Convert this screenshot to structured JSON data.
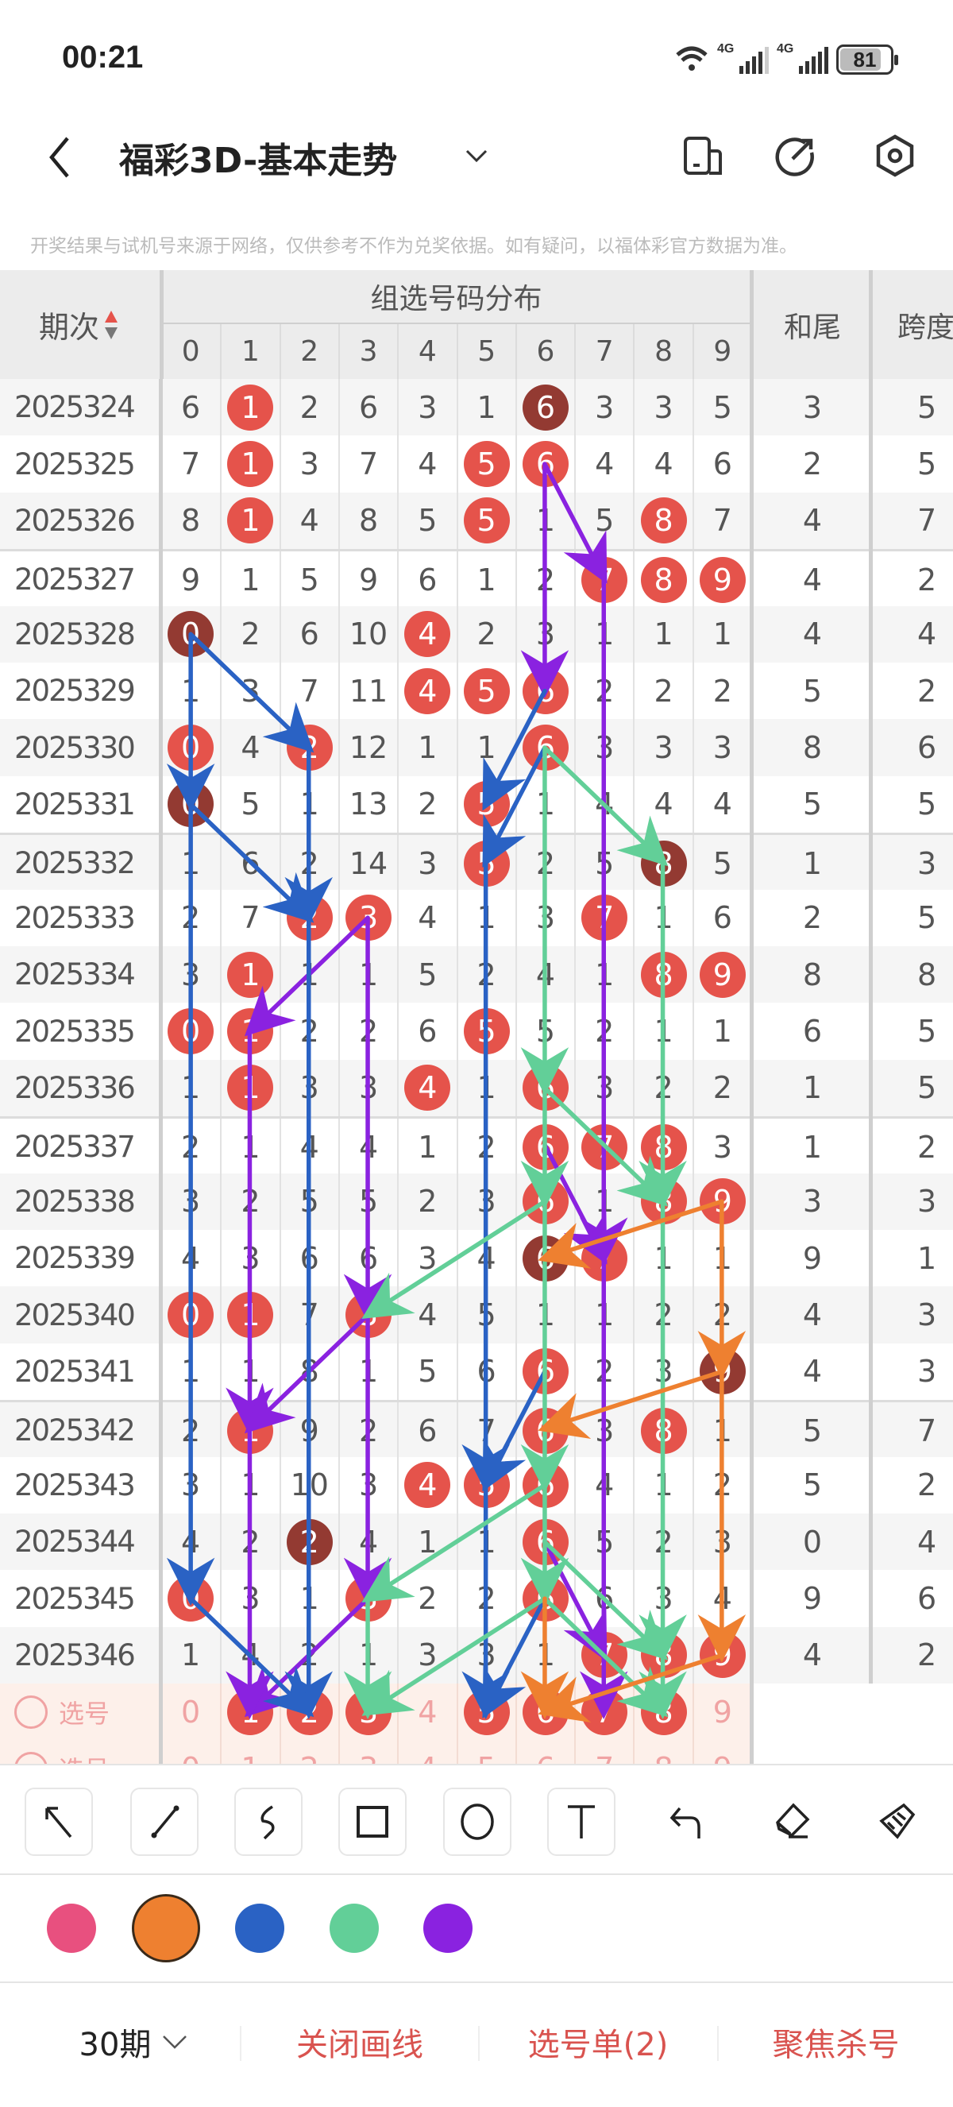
{
  "status_bar": {
    "time": "00:21",
    "network1": "4G",
    "network2": "4G",
    "battery": "81"
  },
  "header": {
    "title": "福彩3D-基本走势",
    "icons": [
      "back-icon",
      "chevron-down-icon",
      "phone-layout-icon",
      "share-icon",
      "settings-icon"
    ]
  },
  "disclaimer": "开奖结果与试机号来源于网络，仅供参考不作为兑奖依据。如有疑问，以福体彩官方数据为准。",
  "table": {
    "col_issue": "期次",
    "col_group": "组选号码分布",
    "digits": [
      "0",
      "1",
      "2",
      "3",
      "4",
      "5",
      "6",
      "7",
      "8",
      "9"
    ],
    "col_sum_tail": "和尾",
    "col_span": "跨度",
    "rows": [
      {
        "issue": "2025324",
        "values": [
          6,
          1,
          2,
          6,
          3,
          1,
          6,
          3,
          3,
          5
        ],
        "hits": [
          1
        ],
        "repeat": 6,
        "sum_tail": "3",
        "span": "5"
      },
      {
        "issue": "2025325",
        "values": [
          7,
          1,
          3,
          7,
          4,
          5,
          6,
          4,
          4,
          6
        ],
        "hits": [
          1,
          5,
          6
        ],
        "repeat": null,
        "sum_tail": "2",
        "span": "5"
      },
      {
        "issue": "2025326",
        "values": [
          8,
          1,
          4,
          8,
          5,
          5,
          1,
          5,
          8,
          7
        ],
        "hits": [
          1,
          5,
          8
        ],
        "repeat": null,
        "sum_tail": "4",
        "span": "7"
      },
      {
        "issue": "2025327",
        "values": [
          9,
          1,
          5,
          9,
          6,
          1,
          2,
          7,
          8,
          9
        ],
        "hits": [
          7,
          8,
          9
        ],
        "repeat": null,
        "sum_tail": "4",
        "span": "2"
      },
      {
        "issue": "2025328",
        "values": [
          0,
          2,
          6,
          10,
          4,
          2,
          3,
          1,
          1,
          1
        ],
        "hits": [
          4
        ],
        "repeat": 0,
        "sum_tail": "4",
        "span": "4"
      },
      {
        "issue": "2025329",
        "values": [
          1,
          3,
          7,
          11,
          4,
          5,
          6,
          2,
          2,
          2
        ],
        "hits": [
          4,
          5,
          6
        ],
        "repeat": null,
        "sum_tail": "5",
        "span": "2"
      },
      {
        "issue": "2025330",
        "values": [
          0,
          4,
          2,
          12,
          1,
          1,
          6,
          3,
          3,
          3
        ],
        "hits": [
          0,
          2,
          6
        ],
        "repeat": null,
        "sum_tail": "8",
        "span": "6"
      },
      {
        "issue": "2025331",
        "values": [
          0,
          5,
          1,
          13,
          2,
          5,
          1,
          4,
          4,
          4
        ],
        "hits": [
          5
        ],
        "repeat": 0,
        "sum_tail": "5",
        "span": "5"
      },
      {
        "issue": "2025332",
        "values": [
          1,
          6,
          2,
          14,
          3,
          5,
          2,
          5,
          8,
          5
        ],
        "hits": [
          5
        ],
        "repeat": 8,
        "sum_tail": "1",
        "span": "3"
      },
      {
        "issue": "2025333",
        "values": [
          2,
          7,
          2,
          3,
          4,
          1,
          3,
          7,
          1,
          6
        ],
        "hits": [
          2,
          3,
          7
        ],
        "repeat": null,
        "sum_tail": "2",
        "span": "5"
      },
      {
        "issue": "2025334",
        "values": [
          3,
          1,
          1,
          1,
          5,
          2,
          4,
          1,
          8,
          9
        ],
        "hits": [
          1,
          8,
          9
        ],
        "repeat": null,
        "sum_tail": "8",
        "span": "8"
      },
      {
        "issue": "2025335",
        "values": [
          0,
          1,
          2,
          2,
          6,
          5,
          5,
          2,
          1,
          1
        ],
        "hits": [
          0,
          1,
          5
        ],
        "repeat": null,
        "sum_tail": "6",
        "span": "5"
      },
      {
        "issue": "2025336",
        "values": [
          1,
          1,
          3,
          3,
          4,
          1,
          6,
          3,
          2,
          2
        ],
        "hits": [
          1,
          4,
          6
        ],
        "repeat": null,
        "sum_tail": "1",
        "span": "5"
      },
      {
        "issue": "2025337",
        "values": [
          2,
          1,
          4,
          4,
          1,
          2,
          6,
          7,
          8,
          3
        ],
        "hits": [
          6,
          7,
          8
        ],
        "repeat": null,
        "sum_tail": "1",
        "span": "2"
      },
      {
        "issue": "2025338",
        "values": [
          3,
          2,
          5,
          5,
          2,
          3,
          6,
          1,
          8,
          9
        ],
        "hits": [
          6,
          8,
          9
        ],
        "repeat": null,
        "sum_tail": "3",
        "span": "3"
      },
      {
        "issue": "2025339",
        "values": [
          4,
          3,
          6,
          6,
          3,
          4,
          6,
          7,
          1,
          1
        ],
        "hits": [
          7
        ],
        "repeat": 6,
        "sum_tail": "9",
        "span": "1"
      },
      {
        "issue": "2025340",
        "values": [
          0,
          1,
          7,
          3,
          4,
          5,
          1,
          1,
          2,
          2
        ],
        "hits": [
          0,
          1,
          3
        ],
        "repeat": null,
        "sum_tail": "4",
        "span": "3"
      },
      {
        "issue": "2025341",
        "values": [
          1,
          1,
          8,
          1,
          5,
          6,
          6,
          2,
          3,
          9
        ],
        "hits": [
          6
        ],
        "repeat": 9,
        "sum_tail": "4",
        "span": "3"
      },
      {
        "issue": "2025342",
        "values": [
          2,
          1,
          9,
          2,
          6,
          7,
          6,
          3,
          8,
          1
        ],
        "hits": [
          1,
          6,
          8
        ],
        "repeat": null,
        "sum_tail": "5",
        "span": "7"
      },
      {
        "issue": "2025343",
        "values": [
          3,
          1,
          10,
          3,
          4,
          5,
          6,
          4,
          1,
          2
        ],
        "hits": [
          4,
          5,
          6
        ],
        "repeat": null,
        "sum_tail": "5",
        "span": "2"
      },
      {
        "issue": "2025344",
        "values": [
          4,
          2,
          2,
          4,
          1,
          1,
          6,
          5,
          2,
          3
        ],
        "hits": [
          6
        ],
        "repeat": 2,
        "sum_tail": "0",
        "span": "4"
      },
      {
        "issue": "2025345",
        "values": [
          0,
          3,
          1,
          3,
          2,
          2,
          6,
          6,
          3,
          4
        ],
        "hits": [
          0,
          3,
          6
        ],
        "repeat": null,
        "sum_tail": "9",
        "span": "6"
      },
      {
        "issue": "2025346",
        "values": [
          1,
          4,
          2,
          1,
          3,
          3,
          1,
          7,
          8,
          9
        ],
        "hits": [
          7,
          8,
          9
        ],
        "repeat": null,
        "sum_tail": "4",
        "span": "2"
      }
    ],
    "selection_rows": [
      {
        "label": "选号",
        "selected": [
          1,
          2,
          3,
          5,
          6,
          7,
          8
        ]
      },
      {
        "label": "选号",
        "selected": []
      }
    ]
  },
  "colors": {
    "hit": "#e5534b",
    "repeat": "#933a32",
    "pink": "#e8507f",
    "orange": "#ee8030",
    "blue": "#2a62c4",
    "green": "#62cf98",
    "purple": "#8a22e0",
    "accent": "#d9534f"
  },
  "drawings": [
    {
      "color": "purple",
      "from": [
        "2025325",
        6
      ],
      "to": [
        "2025327",
        7
      ]
    },
    {
      "color": "purple",
      "from": [
        "2025325",
        6
      ],
      "to": [
        "2025329",
        6
      ]
    },
    {
      "color": "purple",
      "from": [
        "2025327",
        7
      ],
      "to": [
        "2025339",
        7
      ]
    },
    {
      "color": "purple",
      "from": [
        "2025333",
        3
      ],
      "to": [
        "2025335",
        1
      ]
    },
    {
      "color": "purple",
      "from": [
        "2025333",
        3
      ],
      "to": [
        "2025340",
        3
      ]
    },
    {
      "color": "purple",
      "from": [
        "2025335",
        1
      ],
      "to": [
        "2025342",
        1
      ]
    },
    {
      "color": "purple",
      "from": [
        "2025340",
        3
      ],
      "to": [
        "2025342",
        1
      ]
    },
    {
      "color": "purple",
      "from": [
        "2025337",
        6
      ],
      "to": [
        "2025339",
        7
      ]
    },
    {
      "color": "purple",
      "from": [
        "2025340",
        3
      ],
      "to": [
        "2025345",
        3
      ]
    },
    {
      "color": "purple",
      "from": [
        "2025345",
        3
      ],
      "to": [
        "选号",
        1
      ]
    },
    {
      "color": "purple",
      "from": [
        "2025342",
        1
      ],
      "to": [
        "选号",
        1
      ]
    },
    {
      "color": "purple",
      "from": [
        "2025344",
        6
      ],
      "to": [
        "2025346",
        7
      ]
    },
    {
      "color": "purple",
      "from": [
        "2025339",
        7
      ],
      "to": [
        "选号",
        7
      ]
    },
    {
      "color": "blue",
      "from": [
        "2025328",
        0
      ],
      "to": [
        "2025330",
        2
      ]
    },
    {
      "color": "blue",
      "from": [
        "2025328",
        0
      ],
      "to": [
        "2025331",
        0
      ]
    },
    {
      "color": "blue",
      "from": [
        "2025329",
        6
      ],
      "to": [
        "2025331",
        5
      ]
    },
    {
      "color": "blue",
      "from": [
        "2025330",
        6
      ],
      "to": [
        "2025332",
        5
      ]
    },
    {
      "color": "blue",
      "from": [
        "2025331",
        0
      ],
      "to": [
        "2025333",
        2
      ]
    },
    {
      "color": "blue",
      "from": [
        "2025330",
        2
      ],
      "to": [
        "2025333",
        2
      ]
    },
    {
      "color": "blue",
      "from": [
        "2025331",
        0
      ],
      "to": [
        "2025345",
        0
      ]
    },
    {
      "color": "blue",
      "from": [
        "2025333",
        2
      ],
      "to": [
        "选号",
        2
      ]
    },
    {
      "color": "blue",
      "from": [
        "2025332",
        5
      ],
      "to": [
        "2025343",
        5
      ]
    },
    {
      "color": "blue",
      "from": [
        "2025341",
        6
      ],
      "to": [
        "2025343",
        5
      ]
    },
    {
      "color": "blue",
      "from": [
        "2025343",
        5
      ],
      "to": [
        "选号",
        5
      ]
    },
    {
      "color": "blue",
      "from": [
        "2025345",
        0
      ],
      "to": [
        "选号",
        2
      ]
    },
    {
      "color": "blue",
      "from": [
        "2025345",
        6
      ],
      "to": [
        "选号",
        5
      ]
    },
    {
      "color": "green",
      "from": [
        "2025330",
        6
      ],
      "to": [
        "2025332",
        8
      ]
    },
    {
      "color": "green",
      "from": [
        "2025330",
        6
      ],
      "to": [
        "2025336",
        6
      ]
    },
    {
      "color": "green",
      "from": [
        "2025332",
        8
      ],
      "to": [
        "2025338",
        8
      ]
    },
    {
      "color": "green",
      "from": [
        "2025336",
        6
      ],
      "to": [
        "2025338",
        8
      ]
    },
    {
      "color": "green",
      "from": [
        "2025336",
        6
      ],
      "to": [
        "2025338",
        6
      ]
    },
    {
      "color": "green",
      "from": [
        "2025338",
        6
      ],
      "to": [
        "2025340",
        3
      ]
    },
    {
      "color": "green",
      "from": [
        "2025338",
        6
      ],
      "to": [
        "2025343",
        6
      ]
    },
    {
      "color": "green",
      "from": [
        "2025343",
        6
      ],
      "to": [
        "2025345",
        3
      ]
    },
    {
      "color": "green",
      "from": [
        "2025343",
        6
      ],
      "to": [
        "2025345",
        6
      ]
    },
    {
      "color": "green",
      "from": [
        "2025344",
        6
      ],
      "to": [
        "2025346",
        8
      ]
    },
    {
      "color": "green",
      "from": [
        "2025338",
        8
      ],
      "to": [
        "2025346",
        8
      ]
    },
    {
      "color": "green",
      "from": [
        "2025345",
        6
      ],
      "to": [
        "选号",
        3
      ]
    },
    {
      "color": "green",
      "from": [
        "2025345",
        3
      ],
      "to": [
        "选号",
        3
      ]
    },
    {
      "color": "green",
      "from": [
        "2025345",
        6
      ],
      "to": [
        "选号",
        8
      ]
    },
    {
      "color": "green",
      "from": [
        "2025346",
        8
      ],
      "to": [
        "选号",
        8
      ]
    },
    {
      "color": "orange",
      "from": [
        "2025338",
        9
      ],
      "to": [
        "2025339",
        6
      ]
    },
    {
      "color": "orange",
      "from": [
        "2025338",
        9
      ],
      "to": [
        "2025341",
        9
      ]
    },
    {
      "color": "orange",
      "from": [
        "2025341",
        9
      ],
      "to": [
        "2025342",
        6
      ]
    },
    {
      "color": "orange",
      "from": [
        "2025341",
        9
      ],
      "to": [
        "2025346",
        9
      ]
    },
    {
      "color": "orange",
      "from": [
        "2025346",
        9
      ],
      "to": [
        "选号",
        6
      ]
    },
    {
      "color": "orange",
      "from": [
        "2025345",
        6
      ],
      "to": [
        "选号",
        6
      ]
    }
  ],
  "toolbar": {
    "tools": [
      "arrow-tool",
      "line-tool",
      "curve-tool",
      "rectangle-tool",
      "circle-tool",
      "text-tool",
      "undo",
      "eraser",
      "clear-all"
    ],
    "palette": [
      "pink",
      "orange",
      "blue",
      "green",
      "purple"
    ],
    "selected_color": "orange"
  },
  "bottom_bar": {
    "period": "30期",
    "close_drawing": "关闭画线",
    "selection_list": "选号单(2)",
    "focus_kill": "聚焦杀号"
  }
}
